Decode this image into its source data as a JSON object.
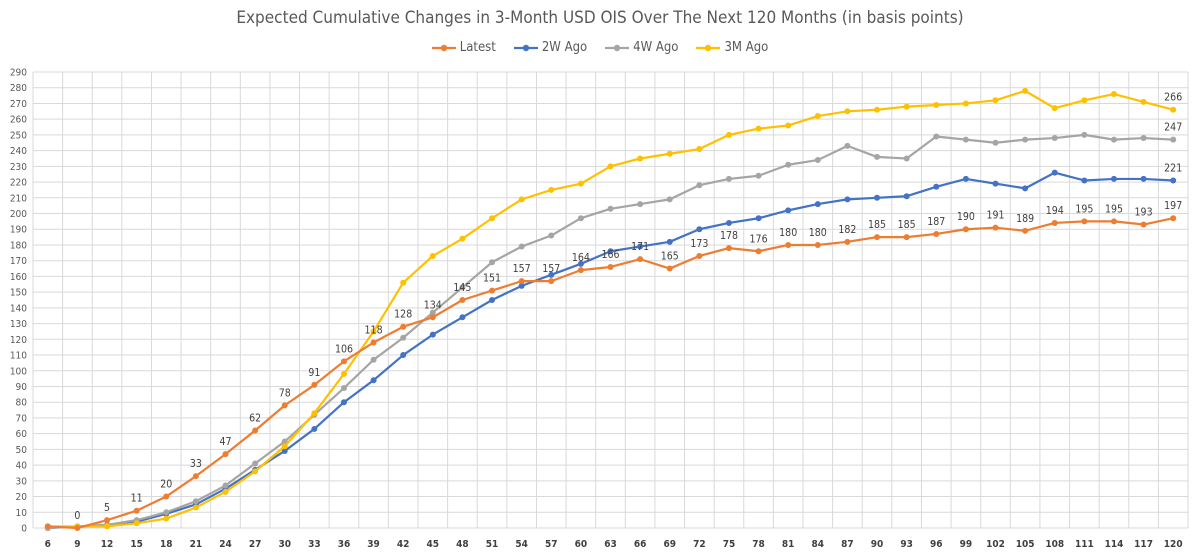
{
  "chart_data": {
    "type": "line",
    "title": "Expected Cumulative Changes in 3-Month USD OIS Over The Next 120 Months (in basis points)",
    "xlabel": "",
    "ylabel": "",
    "ylim": [
      0,
      290
    ],
    "ytick_step": 10,
    "grid": true,
    "legend_position": "top",
    "categories": [
      6,
      9,
      12,
      15,
      18,
      21,
      24,
      27,
      30,
      33,
      36,
      39,
      42,
      45,
      48,
      51,
      54,
      57,
      60,
      63,
      66,
      69,
      72,
      75,
      78,
      81,
      84,
      87,
      90,
      93,
      96,
      99,
      102,
      105,
      108,
      111,
      114,
      117,
      120
    ],
    "series": [
      {
        "name": "Latest",
        "color": "#ED7D31",
        "values": [
          1,
          0,
          5,
          11,
          20,
          33,
          47,
          62,
          78,
          91,
          106,
          118,
          128,
          134,
          145,
          151,
          157,
          157,
          164,
          166,
          171,
          165,
          173,
          178,
          176,
          180,
          180,
          182,
          185,
          185,
          187,
          190,
          191,
          189,
          194,
          195,
          195,
          193,
          197
        ],
        "data_labels": [
          "",
          "0",
          "5",
          "11",
          "20",
          "33",
          "47",
          "62",
          "78",
          "91",
          "106",
          "118",
          "128",
          "134",
          "145",
          "151",
          "157",
          "157",
          "164",
          "166",
          "171",
          "165",
          "173",
          "178",
          "176",
          "180",
          "180",
          "182",
          "185",
          "185",
          "187",
          "190",
          "191",
          "189",
          "194",
          "195",
          "195",
          "193",
          "197"
        ]
      },
      {
        "name": "2W Ago",
        "color": "#4472C4",
        "values": [
          0,
          1,
          2,
          4,
          9,
          15,
          25,
          37,
          49,
          63,
          80,
          94,
          110,
          123,
          134,
          145,
          154,
          161,
          168,
          176,
          179,
          182,
          190,
          194,
          197,
          202,
          206,
          209,
          210,
          211,
          217,
          222,
          219,
          216,
          226,
          221,
          222,
          222,
          221
        ],
        "data_labels": [
          "",
          "",
          "",
          "",
          "",
          "",
          "",
          "",
          "",
          "",
          "",
          "",
          "",
          "",
          "",
          "",
          "",
          "",
          "",
          "",
          "",
          "",
          "",
          "",
          "",
          "",
          "",
          "",
          "",
          "",
          "",
          "",
          "",
          "",
          "",
          "",
          "",
          "",
          "221"
        ]
      },
      {
        "name": "4W Ago",
        "color": "#A5A5A5",
        "values": [
          0,
          1,
          2,
          5,
          10,
          17,
          27,
          41,
          55,
          72,
          89,
          107,
          121,
          137,
          153,
          169,
          179,
          186,
          197,
          203,
          206,
          209,
          218,
          222,
          224,
          231,
          234,
          243,
          236,
          235,
          249,
          247,
          245,
          247,
          248,
          250,
          247,
          248,
          247
        ],
        "data_labels": [
          "",
          "",
          "",
          "",
          "",
          "",
          "",
          "",
          "",
          "",
          "",
          "",
          "",
          "",
          "",
          "",
          "",
          "",
          "",
          "",
          "",
          "",
          "",
          "",
          "",
          "",
          "",
          "",
          "",
          "",
          "",
          "",
          "",
          "",
          "",
          "",
          "",
          "",
          "247"
        ]
      },
      {
        "name": "3M Ago",
        "color": "#FFC000",
        "values": [
          1,
          1,
          1,
          3,
          6,
          13,
          23,
          36,
          52,
          73,
          98,
          125,
          156,
          173,
          184,
          197,
          209,
          215,
          219,
          230,
          235,
          238,
          241,
          250,
          254,
          256,
          262,
          265,
          266,
          268,
          269,
          270,
          272,
          278,
          267,
          272,
          276,
          271,
          266
        ],
        "data_labels": [
          "",
          "",
          "",
          "",
          "",
          "",
          "",
          "",
          "",
          "",
          "",
          "",
          "",
          "",
          "",
          "",
          "",
          "",
          "",
          "",
          "",
          "",
          "",
          "",
          "",
          "",
          "",
          "",
          "",
          "",
          "",
          "",
          "",
          "",
          "",
          "",
          "",
          "",
          "266"
        ]
      }
    ]
  }
}
